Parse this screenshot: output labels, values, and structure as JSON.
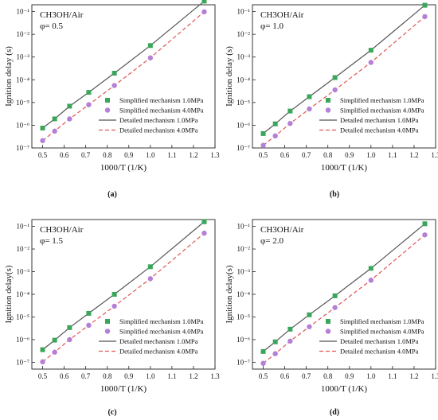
{
  "colors": {
    "simplified_1MPa": "#3aa65a",
    "simplified_4MPa": "#b57fd6",
    "detailed_1MPa": "#555555",
    "detailed_4MPa": "#e05555"
  },
  "chart_data": [
    {
      "type": "scatter",
      "caption": "(a)",
      "annotation": [
        "CH3OH/Air",
        "φ= 0.5"
      ],
      "xlabel": "1000/T (1/K)",
      "ylabel": "Ignition delay (s)",
      "xlim": [
        0.45,
        1.3
      ],
      "ylim_exp": [
        -7,
        -0.7
      ],
      "log_y": true,
      "xticks": [
        "0.5",
        "0.6",
        "0.7",
        "0.8",
        "0.9",
        "1.0",
        "1.1",
        "1.2",
        "1.3"
      ],
      "yticks": [
        "10⁻⁷",
        "10⁻⁶",
        "10⁻⁵",
        "10⁻⁴",
        "10⁻³",
        "10⁻²",
        "10⁻¹"
      ],
      "legend_position": "bottom-right",
      "legend": [
        "Simplified mechanism 1.0MPa",
        "Simplified mechanism 4.0MPa",
        "Detailed mechanism 1.0MPa",
        "Detailed mechanism 4.0MPa"
      ],
      "series": [
        {
          "name": "Simplified mechanism 1.0MPa",
          "kind": "square",
          "x": [
            0.5,
            0.556,
            0.625,
            0.714,
            0.833,
            1.0,
            1.25
          ],
          "y": [
            7.5e-07,
            1.9e-06,
            6.9e-06,
            2.8e-05,
            0.000195,
            0.0032,
            0.29
          ]
        },
        {
          "name": "Simplified mechanism 4.0MPa",
          "kind": "circle",
          "x": [
            0.5,
            0.556,
            0.625,
            0.714,
            0.833,
            1.0,
            1.25
          ],
          "y": [
            2.1e-07,
            5.5e-07,
            1.9e-06,
            8e-06,
            5.6e-05,
            0.00092,
            0.098
          ]
        },
        {
          "name": "Detailed mechanism 1.0MPa",
          "kind": "solid",
          "x": [
            0.5,
            0.556,
            0.625,
            0.714,
            0.833,
            1.0,
            1.25
          ],
          "y": [
            7.5e-07,
            1.9e-06,
            6.9e-06,
            2.8e-05,
            0.000195,
            0.0032,
            0.29
          ]
        },
        {
          "name": "Detailed mechanism 4.0MPa",
          "kind": "dashed",
          "x": [
            0.5,
            0.556,
            0.625,
            0.714,
            0.833,
            1.0,
            1.25
          ],
          "y": [
            2.1e-07,
            5.5e-07,
            1.9e-06,
            8e-06,
            5.6e-05,
            0.00092,
            0.098
          ]
        }
      ]
    },
    {
      "type": "scatter",
      "caption": "(b)",
      "annotation": [
        "CH3OH/Air",
        "φ= 1.0"
      ],
      "xlabel": "1000/T (1/K)",
      "ylabel": "Ignition delay (s)",
      "xlim": [
        0.45,
        1.3
      ],
      "ylim_exp": [
        -7,
        -0.7
      ],
      "log_y": true,
      "xticks": [
        "0.5",
        "0.6",
        "0.7",
        "0.8",
        "0.9",
        "1.0",
        "1.1",
        "1.2",
        "1.3"
      ],
      "yticks": [
        "10⁻⁷",
        "10⁻⁶",
        "10⁻⁵",
        "10⁻⁴",
        "10⁻³",
        "10⁻²",
        "10⁻¹"
      ],
      "legend_position": "bottom-right",
      "legend": [
        "Simplified mechanism 1.0MPa",
        "Simplified mechanism 4.0MPa",
        "Detailed mechanism 1.0MPa",
        "Detailed mechanism 4.0MPa"
      ],
      "series": [
        {
          "name": "Simplified mechanism 1.0MPa",
          "kind": "square",
          "x": [
            0.5,
            0.556,
            0.625,
            0.714,
            0.833,
            1.0,
            1.25
          ],
          "y": [
            4.3e-07,
            1.15e-06,
            4.2e-06,
            1.8e-05,
            0.000125,
            0.002,
            0.19
          ]
        },
        {
          "name": "Simplified mechanism 4.0MPa",
          "kind": "circle",
          "x": [
            0.5,
            0.556,
            0.625,
            0.714,
            0.833,
            1.0,
            1.25
          ],
          "y": [
            1.3e-07,
            3.4e-07,
            1.2e-06,
            5.2e-06,
            3.6e-05,
            0.00058,
            0.06
          ]
        },
        {
          "name": "Detailed mechanism 1.0MPa",
          "kind": "solid",
          "x": [
            0.5,
            0.556,
            0.625,
            0.714,
            0.833,
            1.0,
            1.25
          ],
          "y": [
            4.3e-07,
            1.15e-06,
            4.2e-06,
            1.8e-05,
            0.000125,
            0.002,
            0.19
          ]
        },
        {
          "name": "Detailed mechanism 4.0MPa",
          "kind": "dashed",
          "x": [
            0.5,
            0.556,
            0.625,
            0.714,
            0.833,
            1.0,
            1.25
          ],
          "y": [
            1.3e-07,
            3.4e-07,
            1.2e-06,
            5.2e-06,
            3.6e-05,
            0.00058,
            0.06
          ]
        }
      ]
    },
    {
      "type": "scatter",
      "caption": "(c)",
      "annotation": [
        "CH3OH/Air",
        "φ= 1.5"
      ],
      "xlabel": "1000/T (1/K)",
      "ylabel": "Ignition delay(s)",
      "xlim": [
        0.45,
        1.3
      ],
      "ylim_exp": [
        -7.3,
        -0.7
      ],
      "log_y": true,
      "xticks": [
        "0.5",
        "0.6",
        "0.7",
        "0.8",
        "0.9",
        "1.0",
        "1.1",
        "1.2",
        "1.3"
      ],
      "yticks": [
        "10⁻⁷",
        "10⁻⁶",
        "10⁻⁵",
        "10⁻⁴",
        "10⁻³",
        "10⁻²",
        "10⁻¹"
      ],
      "legend_position": "bottom-right",
      "legend": [
        "Simplified mechanism 1.0MPa",
        "Simplified mechanism 4.0MPa",
        "Detailed mechanism 1.0MPa",
        "Detailed mechanism 4.0MPa"
      ],
      "series": [
        {
          "name": "Simplified mechanism 1.0MPa",
          "kind": "square",
          "x": [
            0.5,
            0.556,
            0.625,
            0.714,
            0.833,
            1.0,
            1.25
          ],
          "y": [
            3.6e-07,
            9.5e-07,
            3.4e-06,
            1.45e-05,
            0.0001,
            0.00165,
            0.16
          ]
        },
        {
          "name": "Simplified mechanism 4.0MPa",
          "kind": "circle",
          "x": [
            0.5,
            0.556,
            0.625,
            0.714,
            0.833,
            1.0,
            1.25
          ],
          "y": [
            1.05e-07,
            2.8e-07,
            1e-06,
            4.3e-06,
            3e-05,
            0.00049,
            0.05
          ]
        },
        {
          "name": "Detailed mechanism 1.0MPa",
          "kind": "solid",
          "x": [
            0.5,
            0.556,
            0.625,
            0.714,
            0.833,
            1.0,
            1.25
          ],
          "y": [
            3.6e-07,
            9.5e-07,
            3.4e-06,
            1.45e-05,
            0.0001,
            0.00165,
            0.16
          ]
        },
        {
          "name": "Detailed mechanism 4.0MPa",
          "kind": "dashed",
          "x": [
            0.5,
            0.556,
            0.625,
            0.714,
            0.833,
            1.0,
            1.25
          ],
          "y": [
            1.05e-07,
            2.8e-07,
            1e-06,
            4.3e-06,
            3e-05,
            0.00049,
            0.05
          ]
        }
      ]
    },
    {
      "type": "scatter",
      "caption": "(d)",
      "annotation": [
        "CH3OH/Air",
        "φ= 2.0"
      ],
      "xlabel": "1000/T (1/K)",
      "ylabel": "Ignition delay(s)",
      "xlim": [
        0.45,
        1.3
      ],
      "ylim_exp": [
        -7.3,
        -0.7
      ],
      "log_y": true,
      "xticks": [
        "0.5",
        "0.6",
        "0.7",
        "0.8",
        "0.9",
        "1.0",
        "1.1",
        "1.2",
        "1.3"
      ],
      "yticks": [
        "10⁻⁷",
        "10⁻⁶",
        "10⁻⁵",
        "10⁻⁴",
        "10⁻³",
        "10⁻²",
        "10⁻¹"
      ],
      "legend_position": "bottom-right",
      "legend": [
        "Simplified mechanism 1.0MPa",
        "Simplified mechanism 4.0MPa",
        "Detailed mechanism 1.0MPa",
        "Detailed mechanism 4.0MPa"
      ],
      "series": [
        {
          "name": "Simplified mechanism 1.0MPa",
          "kind": "square",
          "x": [
            0.5,
            0.556,
            0.625,
            0.714,
            0.833,
            1.0,
            1.25
          ],
          "y": [
            3e-07,
            8e-07,
            2.9e-06,
            1.25e-05,
            8.6e-05,
            0.0014,
            0.13
          ]
        },
        {
          "name": "Simplified mechanism 4.0MPa",
          "kind": "circle",
          "x": [
            0.5,
            0.556,
            0.625,
            0.714,
            0.833,
            1.0,
            1.25
          ],
          "y": [
            9e-08,
            2.4e-07,
            8.6e-07,
            3.7e-06,
            2.6e-05,
            0.00042,
            0.042
          ]
        },
        {
          "name": "Detailed mechanism 1.0MPa",
          "kind": "solid",
          "x": [
            0.5,
            0.556,
            0.625,
            0.714,
            0.833,
            1.0,
            1.25
          ],
          "y": [
            3e-07,
            8e-07,
            2.9e-06,
            1.25e-05,
            8.6e-05,
            0.0014,
            0.13
          ]
        },
        {
          "name": "Detailed mechanism 4.0MPa",
          "kind": "dashed",
          "x": [
            0.5,
            0.556,
            0.625,
            0.714,
            0.833,
            1.0,
            1.25
          ],
          "y": [
            9e-08,
            2.4e-07,
            8.6e-07,
            3.7e-06,
            2.6e-05,
            0.00042,
            0.042
          ]
        }
      ]
    }
  ]
}
